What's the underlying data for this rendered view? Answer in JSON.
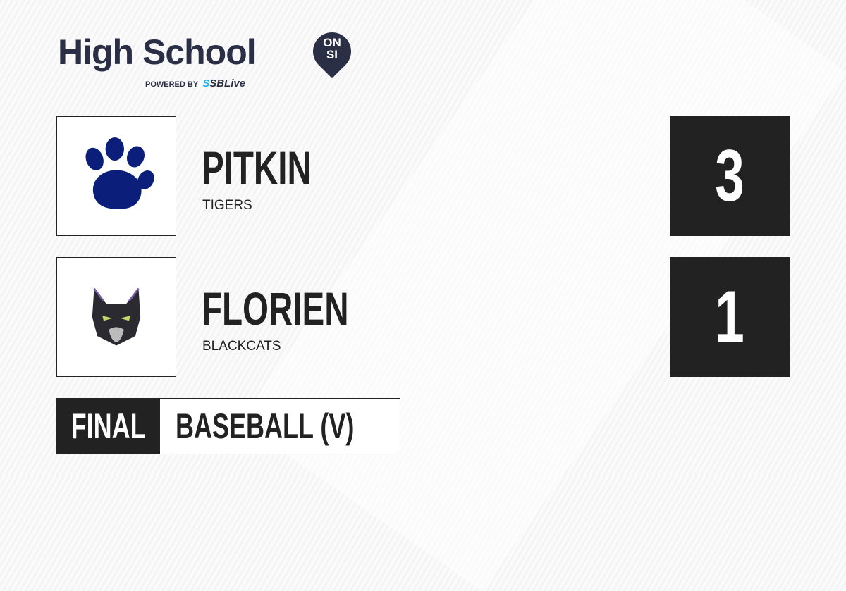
{
  "brand": {
    "title": "High School",
    "badge_top": "ON",
    "badge_bottom": "SI",
    "powered_by": "POWERED BY",
    "partner_s": "S",
    "partner": "SBLive",
    "accent": "#2b2f45",
    "partner_color": "#1fb3e8"
  },
  "teams": [
    {
      "name": "PITKIN",
      "mascot": "TIGERS",
      "score": "3",
      "logo": "paw-print",
      "logo_color": "#0b1f7a"
    },
    {
      "name": "FLORIEN",
      "mascot": "BLACKCATS",
      "score": "1",
      "logo": "blackcat-head"
    }
  ],
  "game": {
    "status": "FINAL",
    "sport": "BASEBALL (V)"
  }
}
